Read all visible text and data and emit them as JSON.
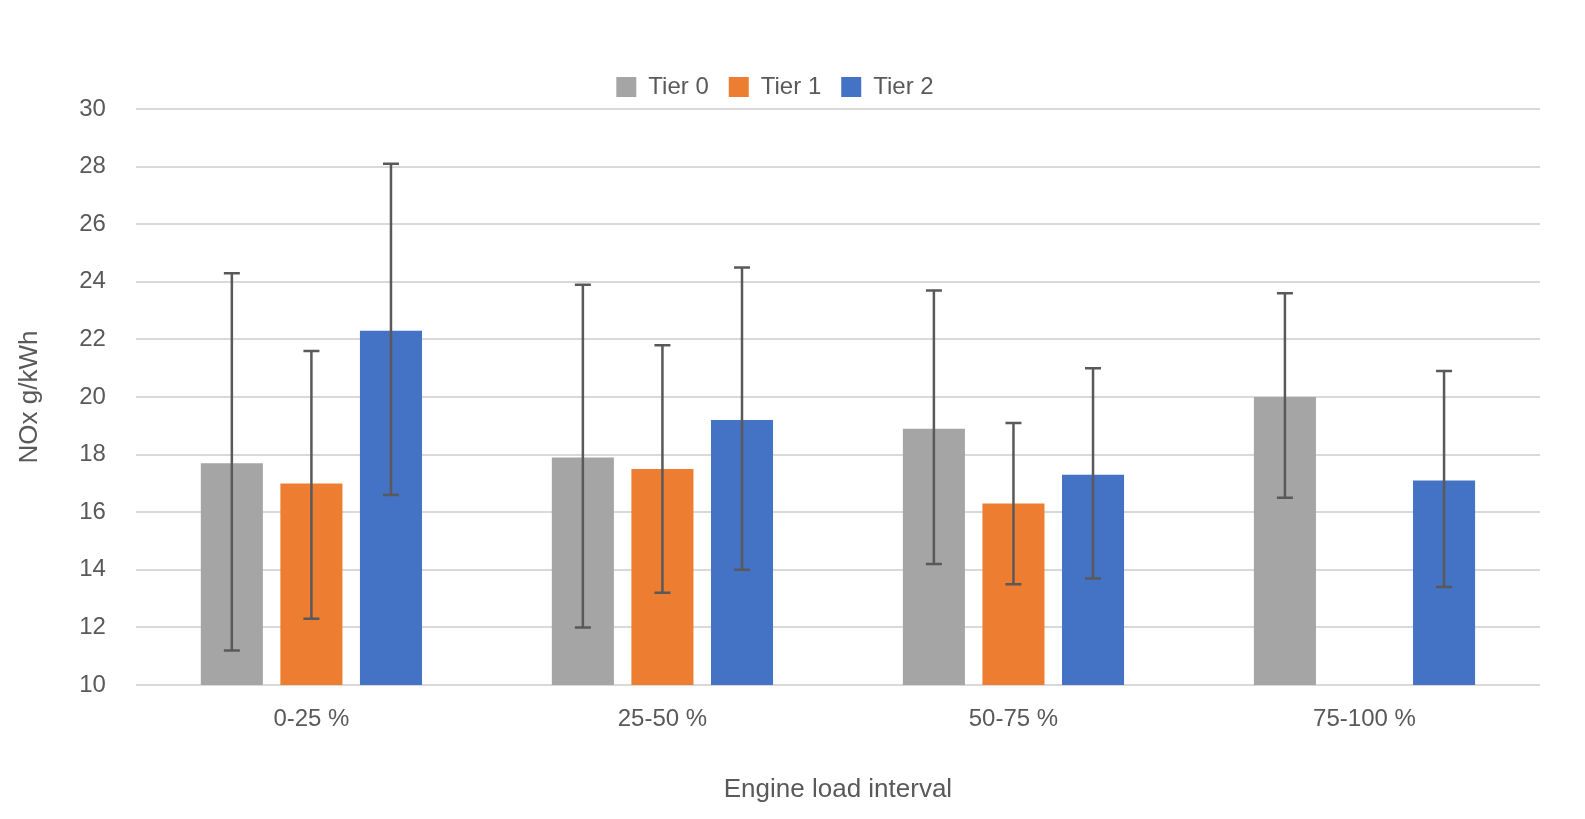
{
  "chart_data": {
    "type": "bar",
    "xlabel": "Engine load interval",
    "ylabel": "NOx g/kWh",
    "categories": [
      "0-25 %",
      "25-50 %",
      "50-75 %",
      "75-100 %"
    ],
    "series": [
      {
        "name": "Tier 0",
        "color": "#a5a5a5",
        "values": [
          17.7,
          17.9,
          18.9,
          20.0
        ],
        "errors": [
          [
            11.2,
            24.3
          ],
          [
            12.0,
            23.9
          ],
          [
            14.2,
            23.7
          ],
          [
            16.5,
            23.6
          ]
        ]
      },
      {
        "name": "Tier 1",
        "color": "#ed7d31",
        "values": [
          17.0,
          17.5,
          16.3,
          null
        ],
        "errors": [
          [
            12.3,
            21.6
          ],
          [
            13.2,
            21.8
          ],
          [
            13.5,
            19.1
          ],
          null
        ]
      },
      {
        "name": "Tier 2",
        "color": "#4472c4",
        "values": [
          22.3,
          19.2,
          17.3,
          17.1
        ],
        "errors": [
          [
            16.6,
            28.1
          ],
          [
            14.0,
            24.5
          ],
          [
            13.7,
            21.0
          ],
          [
            13.4,
            20.9
          ]
        ]
      }
    ],
    "ylim": [
      10,
      30
    ],
    "yticks": [
      10,
      12,
      14,
      16,
      18,
      20,
      22,
      24,
      26,
      28,
      30
    ],
    "grid": "y",
    "legend": "top"
  }
}
